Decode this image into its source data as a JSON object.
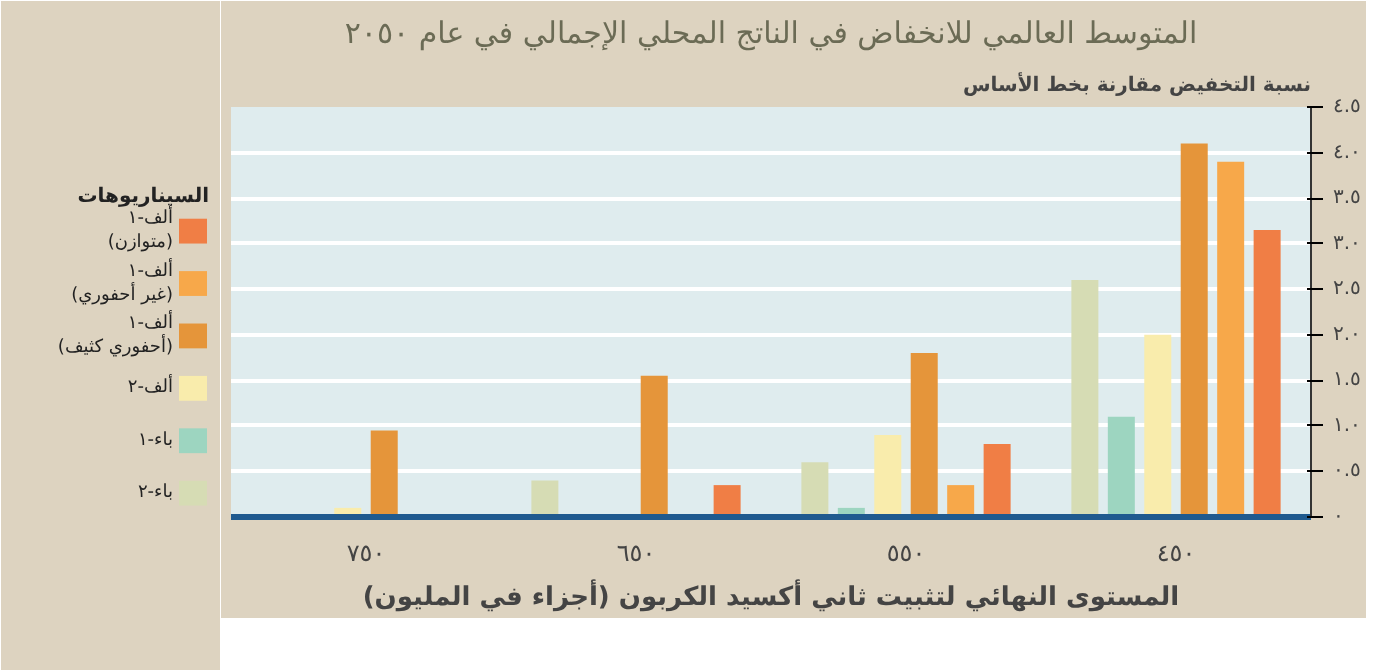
{
  "chart_data": {
    "type": "bar",
    "title": "المتوسط العالمي للانخفاض في الناتج المحلي الإجمالي في عام ٢٠٥٠",
    "ylabel": "نسبة التخفيض مقارنة بخط الأساس",
    "xlabel": "المستوى النهائي لتثبيت ثاني أكسيد الكربون (أجزاء في المليون)",
    "legend_title": "السيناريوهات",
    "categories": [
      "٧٥٠",
      "٦٥٠",
      "٥٥٠",
      "٤٥٠"
    ],
    "series": [
      {
        "name": "باء-٢",
        "color": "#d6dcb4",
        "values": [
          null,
          0.4,
          0.6,
          2.6
        ]
      },
      {
        "name": "باء-١",
        "color": "#9dd5c0",
        "values": [
          null,
          null,
          0.1,
          1.1
        ]
      },
      {
        "name": "ألف-٢",
        "color": "#f9ecac",
        "values": [
          0.1,
          null,
          0.9,
          2.0
        ]
      },
      {
        "name": "ألف-١\n(أحفوري كثيف)",
        "color": "#e5953a",
        "values": [
          0.95,
          1.55,
          1.8,
          4.1
        ]
      },
      {
        "name": "ألف-١\n(غير أحفوري)",
        "color": "#f7a84a",
        "values": [
          null,
          null,
          0.35,
          3.9
        ]
      },
      {
        "name": "ألف-١\n(متوازن)",
        "color": "#f07e45",
        "values": [
          null,
          0.35,
          0.8,
          3.15
        ]
      }
    ],
    "ylim": [
      0,
      4.5
    ],
    "yticks": [
      {
        "value": 0,
        "label": "٠"
      },
      {
        "value": 0.5,
        "label": "٠.٥"
      },
      {
        "value": 1,
        "label": "١.٠"
      },
      {
        "value": 1.5,
        "label": "١.٥"
      },
      {
        "value": 2,
        "label": "٢.٠"
      },
      {
        "value": 2.5,
        "label": "٢.٥"
      },
      {
        "value": 3,
        "label": "٣.٠"
      },
      {
        "value": 3.5,
        "label": "٣.٥"
      },
      {
        "value": 4,
        "label": "٤.٠"
      },
      {
        "value": 4.5,
        "label": "٤.٥"
      }
    ],
    "grid": "y",
    "legend": "left"
  }
}
